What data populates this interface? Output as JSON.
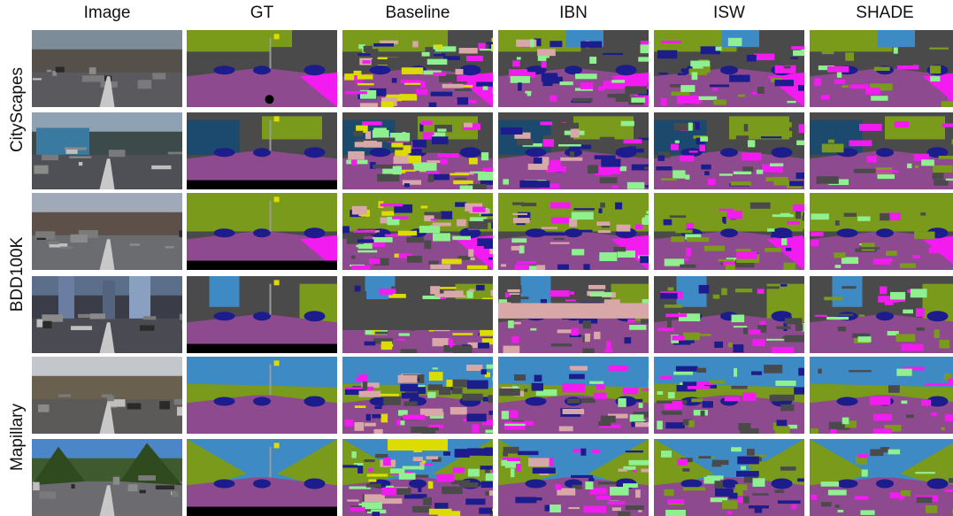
{
  "columns": [
    "Image",
    "GT",
    "Baseline",
    "IBN",
    "ISW",
    "SHADE"
  ],
  "datasets": [
    {
      "name": "CityScapes",
      "rows": 2
    },
    {
      "name": "BDD100K",
      "rows": 2
    },
    {
      "name": "Mapillary",
      "rows": 2
    }
  ],
  "colors": {
    "road": "#8e4a8e",
    "sidewalk": "#f21cf0",
    "building": "#4a4a4a",
    "sky": "#3d8ac4",
    "vegetation": "#7a9a1c",
    "terrain": "#8ef08e",
    "car": "#1c1c8c",
    "truck_bus": "#1c4a6e",
    "pole": "#9a9a9a",
    "sign": "#dcdc00",
    "wall": "#d8a8a8",
    "void": "#000000",
    "red": "#8c1c1c"
  }
}
